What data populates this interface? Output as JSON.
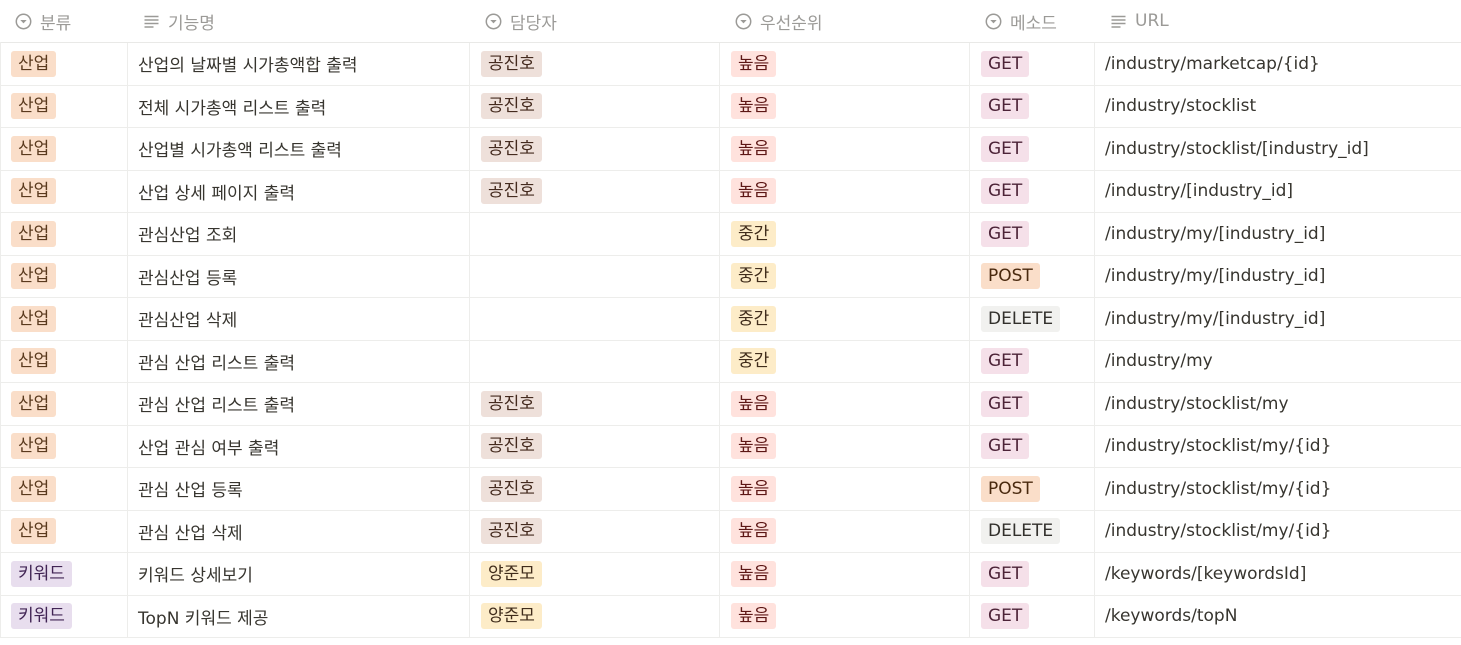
{
  "columns": [
    {
      "label": "분류",
      "icon": "select-icon"
    },
    {
      "label": "기능명",
      "icon": "text-lines-icon"
    },
    {
      "label": "담당자",
      "icon": "select-icon"
    },
    {
      "label": "우선순위",
      "icon": "select-icon"
    },
    {
      "label": "메소드",
      "icon": "select-icon"
    },
    {
      "label": "URL",
      "icon": "text-lines-icon"
    }
  ],
  "tag_colors": {
    "산업": {
      "bg": "#fadec9",
      "fg": "#5a3a1e"
    },
    "키워드": {
      "bg": "#e8deee",
      "fg": "#412454"
    },
    "공진호": {
      "bg": "#eee0da",
      "fg": "#442a1e"
    },
    "양준모": {
      "bg": "#fdecc8",
      "fg": "#402c1b"
    },
    "높음": {
      "bg": "#ffe2dd",
      "fg": "#5d1715"
    },
    "중간": {
      "bg": "#fdecc8",
      "fg": "#402c1b"
    },
    "GET": {
      "bg": "#f5e0e9",
      "fg": "#4c2337"
    },
    "POST": {
      "bg": "#fadec9",
      "fg": "#49290e"
    },
    "DELETE": {
      "bg": "#f1f1ef",
      "fg": "#32302c"
    }
  },
  "rows": [
    {
      "category": "산업",
      "name": "산업의 날짜별 시가총액합 출력",
      "owner": "공진호",
      "priority": "높음",
      "method": "GET",
      "url": "/industry/marketcap/{id}"
    },
    {
      "category": "산업",
      "name": "전체 시가총액 리스트 출력",
      "owner": "공진호",
      "priority": "높음",
      "method": "GET",
      "url": "/industry/stocklist"
    },
    {
      "category": "산업",
      "name": "산업별 시가총액 리스트 출력",
      "owner": "공진호",
      "priority": "높음",
      "method": "GET",
      "url": "/industry/stocklist/[industry_id]"
    },
    {
      "category": "산업",
      "name": "산업 상세 페이지 출력",
      "owner": "공진호",
      "priority": "높음",
      "method": "GET",
      "url": "/industry/[industry_id]"
    },
    {
      "category": "산업",
      "name": "관심산업 조회",
      "owner": "",
      "priority": "중간",
      "method": "GET",
      "url": "/industry/my/[industry_id]"
    },
    {
      "category": "산업",
      "name": "관심산업 등록",
      "owner": "",
      "priority": "중간",
      "method": "POST",
      "url": "/industry/my/[industry_id]"
    },
    {
      "category": "산업",
      "name": "관심산업 삭제",
      "owner": "",
      "priority": "중간",
      "method": "DELETE",
      "url": "/industry/my/[industry_id]"
    },
    {
      "category": "산업",
      "name": "관심 산업 리스트 출력",
      "owner": "",
      "priority": "중간",
      "method": "GET",
      "url": "/industry/my"
    },
    {
      "category": "산업",
      "name": "관심 산업 리스트 출력",
      "owner": "공진호",
      "priority": "높음",
      "method": "GET",
      "url": "/industry/stocklist/my"
    },
    {
      "category": "산업",
      "name": "산업 관심 여부 출력",
      "owner": "공진호",
      "priority": "높음",
      "method": "GET",
      "url": "/industry/stocklist/my/{id}"
    },
    {
      "category": "산업",
      "name": "관심 산업 등록",
      "owner": "공진호",
      "priority": "높음",
      "method": "POST",
      "url": "/industry/stocklist/my/{id}"
    },
    {
      "category": "산업",
      "name": "관심 산업 삭제",
      "owner": "공진호",
      "priority": "높음",
      "method": "DELETE",
      "url": "/industry/stocklist/my/{id}"
    },
    {
      "category": "키워드",
      "name": "키워드 상세보기",
      "owner": "양준모",
      "priority": "높음",
      "method": "GET",
      "url": "/keywords/[keywordsId]"
    },
    {
      "category": "키워드",
      "name": "TopN 키워드 제공",
      "owner": "양준모",
      "priority": "높음",
      "method": "GET",
      "url": "/keywords/topN"
    }
  ]
}
